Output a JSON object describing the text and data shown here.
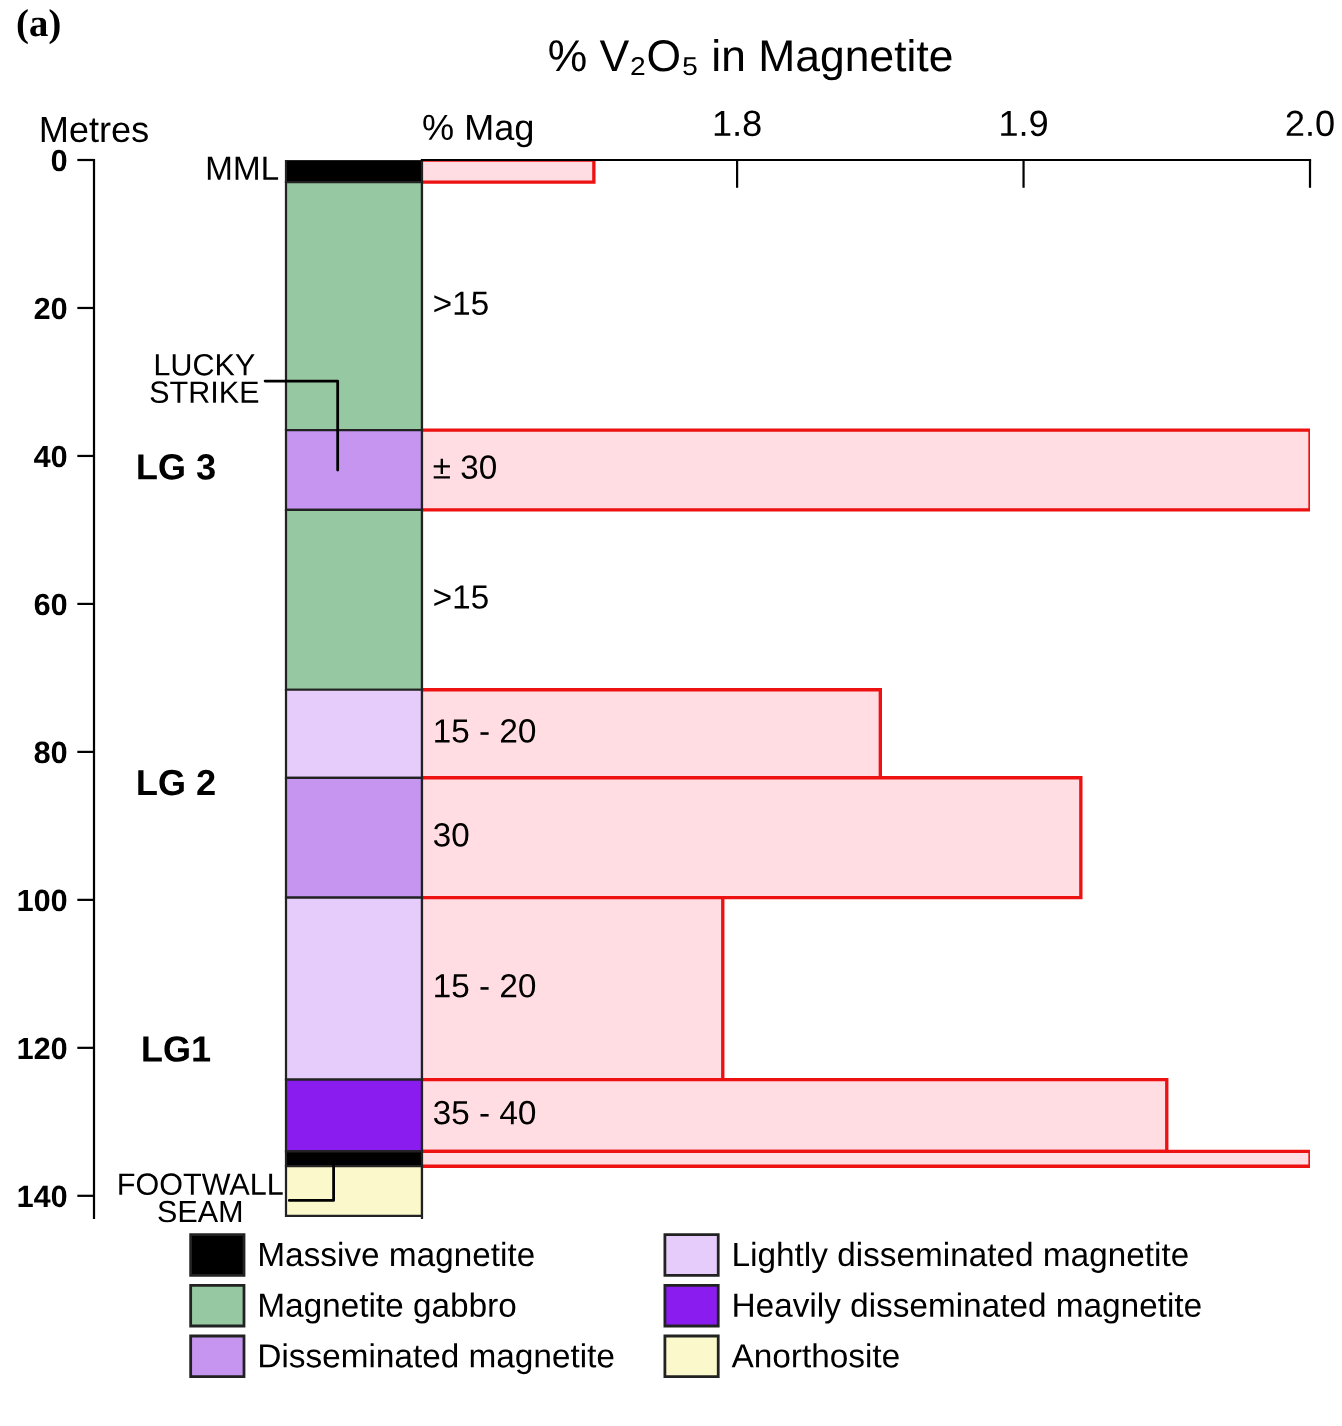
{
  "chart_data": [
    {
      "type": "bar",
      "stacked": true,
      "ylabel": "Metres",
      "categories": [
        null
      ],
      "ylim": [
        143,
        0
      ],
      "yticks": [
        0,
        20,
        40,
        60,
        80,
        100,
        120,
        140
      ],
      "tick_labels": "y",
      "legend": "bottom",
      "series": [
        {
          "name": "Massive magnetite",
          "color": "#000000",
          "values": [
            3
          ]
        },
        {
          "name": "Magnetite gabbro",
          "color": "#96c8a2",
          "values": [
            33.5
          ]
        },
        {
          "name": "Disseminated magnetite",
          "color": "#c595f0",
          "values": [
            10.8
          ]
        },
        {
          "color": "#96c8a2",
          "values": [
            24.3
          ]
        },
        {
          "name": "Lightly disseminated magnetite",
          "color": "#e5ccfb",
          "values": [
            11.9
          ]
        },
        {
          "color": "#c595f0",
          "values": [
            16.2
          ]
        },
        {
          "color": "#e5ccfb",
          "values": [
            24.6
          ]
        },
        {
          "name": "Heavily disseminated magnetite",
          "color": "#8a1cf0",
          "values": [
            9.7
          ]
        },
        {
          "color": "#000000",
          "values": [
            2
          ]
        },
        {
          "name": "Anorthosite",
          "color": "#fbf8cc",
          "values": [
            6.7
          ]
        }
      ],
      "annotations": [
        "(a)",
        "MML",
        "LUCKY\nSTRIKE",
        "LG 3",
        "LG 2",
        "LG1",
        "FOOTWALL\nSEAM"
      ]
    },
    {
      "type": "bar",
      "orientation": "horizontal",
      "title": "% V₂O₅ in Magnetite",
      "xlabel": "% Mag",
      "x": [
        1.5,
        19.75,
        41.9,
        59.45,
        77.55,
        91.6,
        112,
        129.15,
        135
      ],
      "values": [
        1.75,
        null,
        2.0,
        null,
        1.85,
        1.92,
        1.795,
        1.95,
        2.0
      ],
      "color": "#ffdde3",
      "xlim": [
        1.69,
        2.0
      ],
      "xticks": [
        1.8,
        1.9,
        {
          "value": 2.0,
          "label": "2.0"
        }
      ],
      "ylim": [
        143,
        0
      ],
      "yticks": [
        0,
        20,
        40,
        60,
        80,
        100,
        120,
        140
      ],
      "tick_labels": "x",
      "annotations": [
        ">15",
        "± 30",
        ">15",
        "15 - 20",
        "30",
        "15 - 20",
        "35 - 40"
      ]
    }
  ]
}
